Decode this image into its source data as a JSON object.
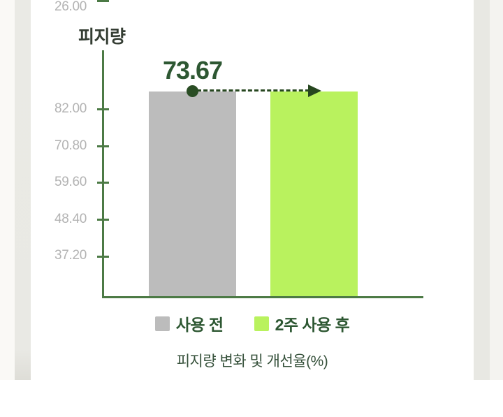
{
  "colors": {
    "bar_before": "#bcbcbc",
    "bar_after": "#b9f25e",
    "axis_green": "#4c7a45",
    "text_dark_green": "#2d5732",
    "tick_label_gray": "#b3b3b3",
    "annotation_green": "#26461f",
    "side_strip": "#e9e9e4"
  },
  "chart_data": {
    "type": "bar",
    "title": "피지량",
    "caption": "피지량 변화 및 개선율(%)",
    "categories": [
      "사용 전",
      "2주 사용 후"
    ],
    "values": [
      73.67,
      73.67
    ],
    "yticks": [
      "82.00",
      "70.80",
      "59.60",
      "48.40",
      "37.20",
      "26.00"
    ],
    "ylabel": "피지량",
    "ylim": [
      26.0,
      82.0
    ],
    "grid": false,
    "legend_position": "bottom",
    "legend": [
      {
        "label": "사용 전",
        "color": "#bcbcbc"
      },
      {
        "label": "2주 사용 후",
        "color": "#b9f25e"
      }
    ],
    "annotation": {
      "label": "73.67",
      "type": "dashed-arrow",
      "from": "사용 전",
      "to": "2주 사용 후"
    }
  }
}
